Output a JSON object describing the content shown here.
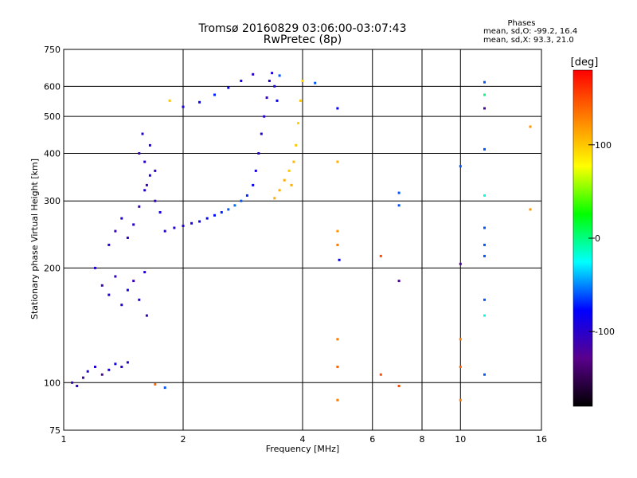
{
  "chart_data": {
    "type": "scatter",
    "title": "Tromsø 20160829 03:06:00-03:07:43",
    "subtitle": "RwPretec (8p)",
    "xlabel": "Frequency [MHz]",
    "ylabel": "Stationary phase Virtual Height [km]",
    "x_scale": "log",
    "y_scale": "log",
    "xlim": [
      1,
      16
    ],
    "ylim": [
      75,
      750
    ],
    "x_ticks": [
      {
        "value": 1,
        "label": "1"
      },
      {
        "value": 2,
        "label": "2"
      },
      {
        "value": 4,
        "label": "4"
      },
      {
        "value": 6,
        "label": "6"
      },
      {
        "value": 8,
        "label": "8"
      },
      {
        "value": 10,
        "label": "10"
      },
      {
        "value": 16,
        "label": "16"
      }
    ],
    "y_ticks": [
      {
        "value": 75,
        "label": "75"
      },
      {
        "value": 100,
        "label": "100"
      },
      {
        "value": 200,
        "label": "200"
      },
      {
        "value": 300,
        "label": "300"
      },
      {
        "value": 400,
        "label": "400"
      },
      {
        "value": 500,
        "label": "500"
      },
      {
        "value": 600,
        "label": "600"
      },
      {
        "value": 750,
        "label": "750"
      }
    ],
    "grid": true,
    "phase_info": {
      "heading": "Phases",
      "line_o": "mean, sd,O: -99.2, 16.4",
      "line_x": "mean, sd,X:  93.3, 21.0"
    },
    "colorbar": {
      "label": "[deg]",
      "min": -180,
      "max": 180,
      "ticks": [
        {
          "value": 100,
          "label": "100"
        },
        {
          "value": 0,
          "label": "0"
        },
        {
          "value": -100,
          "label": "-100"
        }
      ],
      "stops": [
        "#000000",
        "#5a008c",
        "#0000ff",
        "#00ffff",
        "#00ff00",
        "#ffff00",
        "#ff8000",
        "#ff0000"
      ]
    },
    "series": [
      {
        "points": [
          [
            1.05,
            100,
            -110
          ],
          [
            1.08,
            98,
            -105
          ],
          [
            1.12,
            103,
            -115
          ],
          [
            1.15,
            107,
            -100
          ],
          [
            1.2,
            110,
            -95
          ],
          [
            1.25,
            105,
            -120
          ],
          [
            1.3,
            108,
            -90
          ],
          [
            1.35,
            112,
            -85
          ],
          [
            1.4,
            110,
            -100
          ],
          [
            1.45,
            113,
            -95
          ],
          [
            1.2,
            200,
            -100
          ],
          [
            1.25,
            180,
            -110
          ],
          [
            1.3,
            170,
            -95
          ],
          [
            1.35,
            190,
            -105
          ],
          [
            1.4,
            160,
            -100
          ],
          [
            1.45,
            175,
            -90
          ],
          [
            1.5,
            185,
            -110
          ],
          [
            1.55,
            165,
            -100
          ],
          [
            1.6,
            195,
            -95
          ],
          [
            1.62,
            150,
            -105
          ],
          [
            1.3,
            230,
            -100
          ],
          [
            1.35,
            250,
            -110
          ],
          [
            1.4,
            270,
            -95
          ],
          [
            1.45,
            240,
            -105
          ],
          [
            1.5,
            260,
            -100
          ],
          [
            1.55,
            290,
            -110
          ],
          [
            1.6,
            320,
            -95
          ],
          [
            1.65,
            350,
            -100
          ],
          [
            1.7,
            300,
            -105
          ],
          [
            1.75,
            280,
            -90
          ],
          [
            1.55,
            400,
            -110
          ],
          [
            1.6,
            380,
            -100
          ],
          [
            1.65,
            420,
            -95
          ],
          [
            1.7,
            360,
            -105
          ],
          [
            1.58,
            450,
            -100
          ],
          [
            1.62,
            330,
            -110
          ],
          [
            1.8,
            250,
            -100
          ],
          [
            1.9,
            255,
            -95
          ],
          [
            2.0,
            258,
            -100
          ],
          [
            2.1,
            262,
            -90
          ],
          [
            2.2,
            265,
            -85
          ],
          [
            2.3,
            270,
            -80
          ],
          [
            2.4,
            275,
            -75
          ],
          [
            2.5,
            280,
            -70
          ],
          [
            2.6,
            285,
            -60
          ],
          [
            2.7,
            292,
            -55
          ],
          [
            2.8,
            300,
            -60
          ],
          [
            2.9,
            310,
            -70
          ],
          [
            3.0,
            330,
            -80
          ],
          [
            3.05,
            360,
            -90
          ],
          [
            3.1,
            400,
            -95
          ],
          [
            3.15,
            450,
            -100
          ],
          [
            3.2,
            500,
            -100
          ],
          [
            3.25,
            560,
            -105
          ],
          [
            3.3,
            620,
            -100
          ],
          [
            3.35,
            650,
            -95
          ],
          [
            3.4,
            600,
            -90
          ],
          [
            3.45,
            550,
            -80
          ],
          [
            3.5,
            640,
            -60
          ],
          [
            2.0,
            530,
            -90
          ],
          [
            2.2,
            545,
            -80
          ],
          [
            2.4,
            570,
            -70
          ],
          [
            2.6,
            595,
            -80
          ],
          [
            2.8,
            620,
            -90
          ],
          [
            3.0,
            645,
            -100
          ],
          [
            1.85,
            550,
            100
          ],
          [
            3.4,
            305,
            110
          ],
          [
            3.5,
            320,
            110
          ],
          [
            3.6,
            340,
            110
          ],
          [
            3.7,
            360,
            100
          ],
          [
            3.8,
            380,
            105
          ],
          [
            3.85,
            420,
            100
          ],
          [
            3.9,
            480,
            95
          ],
          [
            3.95,
            550,
            100
          ],
          [
            4.0,
            620,
            95
          ],
          [
            3.75,
            330,
            110
          ],
          [
            4.9,
            380,
            110
          ],
          [
            4.9,
            250,
            120
          ],
          [
            4.9,
            230,
            130
          ],
          [
            4.95,
            210,
            -80
          ],
          [
            4.9,
            130,
            130
          ],
          [
            4.9,
            110,
            140
          ],
          [
            4.9,
            90,
            130
          ],
          [
            4.9,
            525,
            -80
          ],
          [
            4.3,
            612,
            -60
          ],
          [
            6.3,
            215,
            150
          ],
          [
            6.3,
            105,
            150
          ],
          [
            7.0,
            315,
            -60
          ],
          [
            7.0,
            292,
            -60
          ],
          [
            7.0,
            185,
            -120
          ],
          [
            7.0,
            98,
            150
          ],
          [
            10.0,
            370,
            -60
          ],
          [
            10.0,
            205,
            -120
          ],
          [
            10.0,
            130,
            130
          ],
          [
            10.0,
            110,
            140
          ],
          [
            10.0,
            90,
            130
          ],
          [
            11.5,
            615,
            -60
          ],
          [
            11.5,
            570,
            0
          ],
          [
            11.5,
            525,
            -120
          ],
          [
            11.5,
            410,
            -60
          ],
          [
            11.5,
            310,
            -20
          ],
          [
            11.5,
            255,
            -60
          ],
          [
            11.5,
            230,
            -60
          ],
          [
            11.5,
            215,
            -60
          ],
          [
            11.5,
            165,
            -60
          ],
          [
            11.5,
            150,
            -20
          ],
          [
            11.5,
            105,
            -60
          ],
          [
            15.0,
            470,
            120
          ],
          [
            15.0,
            285,
            120
          ],
          [
            1.7,
            99,
            140
          ],
          [
            1.8,
            97,
            -60
          ]
        ]
      }
    ]
  }
}
